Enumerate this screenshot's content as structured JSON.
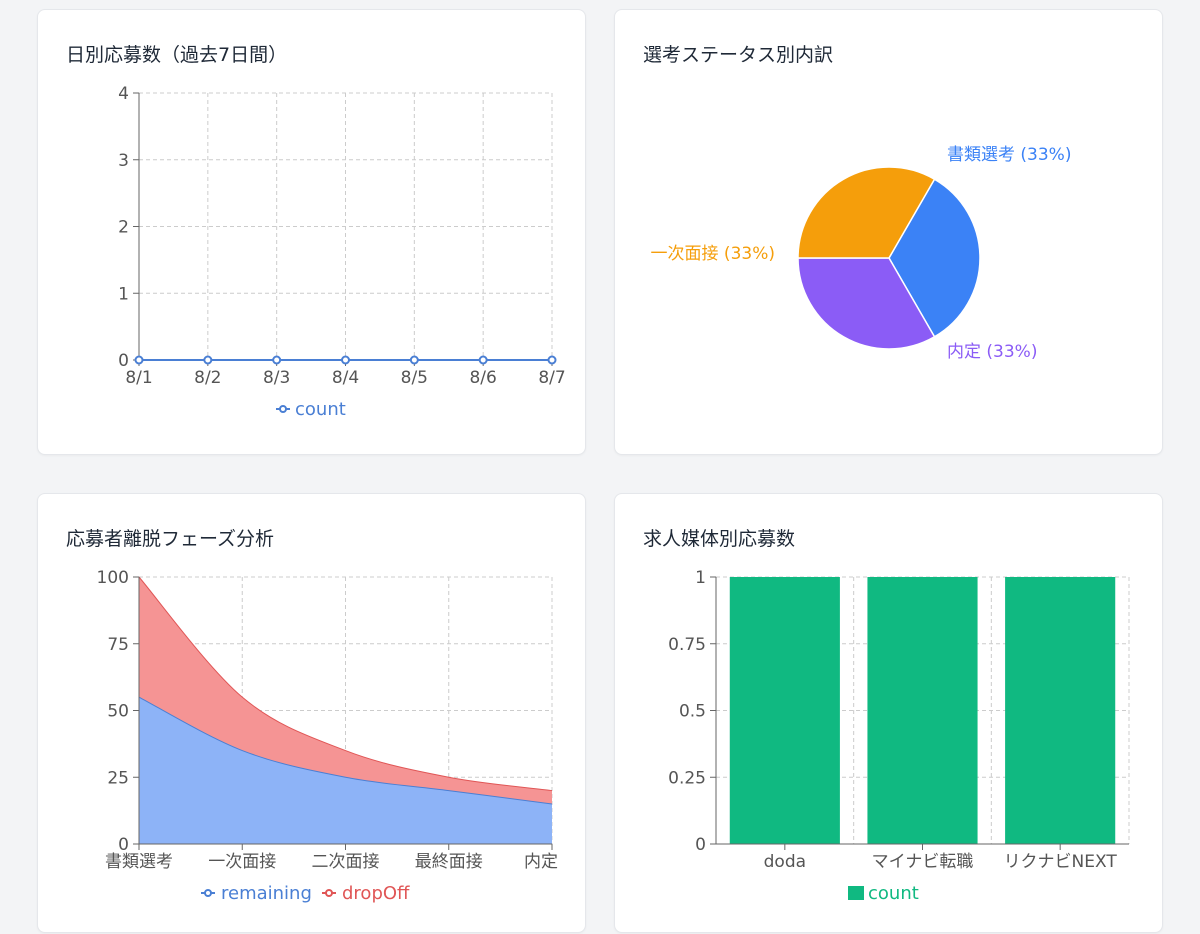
{
  "chart_data": [
    {
      "id": "daily",
      "type": "line",
      "title": "日別応募数（過去7日間）",
      "x": [
        "8/1",
        "8/2",
        "8/3",
        "8/4",
        "8/5",
        "8/6",
        "8/7"
      ],
      "series": [
        {
          "name": "count",
          "values": [
            0,
            0,
            0,
            0,
            0,
            0,
            0
          ],
          "color": "#4a7fd4"
        }
      ],
      "ylim": [
        0,
        4
      ],
      "yticks": [
        "0",
        "1",
        "2",
        "3",
        "4"
      ],
      "grid": true,
      "legend": "bottom"
    },
    {
      "id": "status",
      "type": "pie",
      "title": "選考ステータス別内訳",
      "slices": [
        {
          "label": "書類選考",
          "value": 33,
          "display": "書類選考 (33%)",
          "color": "#3b82f6"
        },
        {
          "label": "内定",
          "value": 33,
          "display": "内定 (33%)",
          "color": "#8b5cf6"
        },
        {
          "label": "一次面接",
          "value": 33,
          "display": "一次面接 (33%)",
          "color": "#f59e0b"
        }
      ]
    },
    {
      "id": "dropoff",
      "type": "area",
      "title": "応募者離脱フェーズ分析",
      "categories": [
        "書類選考",
        "一次面接",
        "二次面接",
        "最終面接",
        "内定"
      ],
      "series": [
        {
          "name": "remaining",
          "values": [
            55,
            35,
            25,
            20,
            15
          ],
          "color": "#4a7fd4",
          "fill": "#8db3f7"
        },
        {
          "name": "dropOff",
          "values": [
            45,
            20,
            10,
            5,
            5
          ],
          "color": "#e05656",
          "fill": "#f59494"
        }
      ],
      "stacked": true,
      "ylim": [
        0,
        100
      ],
      "yticks": [
        "0",
        "25",
        "50",
        "75",
        "100"
      ],
      "grid": true,
      "legend": "bottom"
    },
    {
      "id": "media",
      "type": "bar",
      "title": "求人媒体別応募数",
      "categories": [
        "doda",
        "マイナビ転職",
        "リクナビNEXT"
      ],
      "series": [
        {
          "name": "count",
          "values": [
            1,
            1,
            1
          ],
          "color": "#10b981"
        }
      ],
      "ylim": [
        0,
        1
      ],
      "yticks": [
        "0",
        "0.25",
        "0.5",
        "0.75",
        "1"
      ],
      "grid": true,
      "legend": "bottom"
    }
  ]
}
